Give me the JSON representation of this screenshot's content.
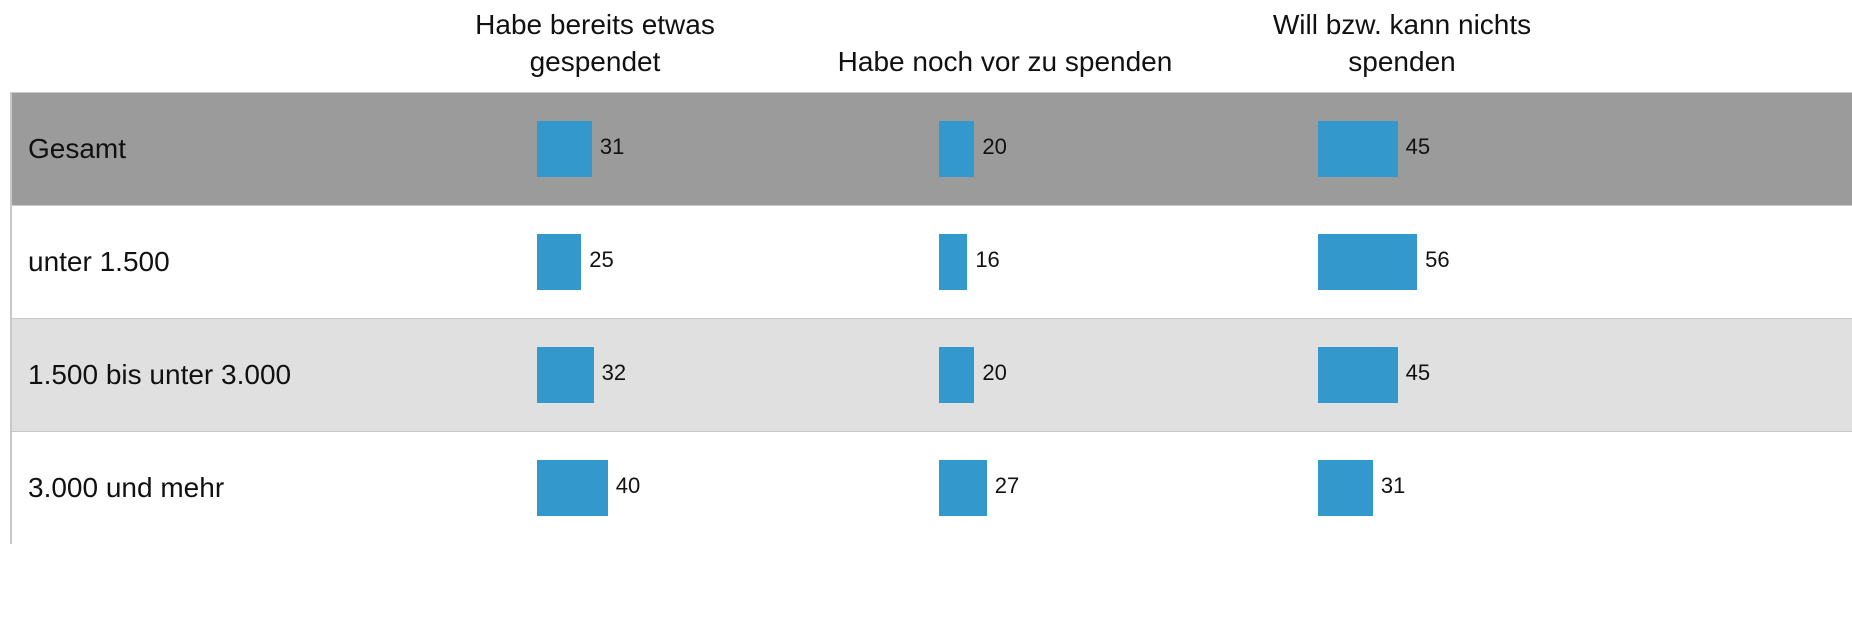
{
  "chart_data": {
    "type": "bar-table",
    "categories": [
      "Gesamt",
      "unter 1.500",
      "1.500 bis unter 3.000",
      "3.000 und mehr"
    ],
    "color": "#3399cc",
    "series": [
      {
        "name": "Habe bereits etwas gespendet",
        "values": [
          31,
          25,
          32,
          40
        ]
      },
      {
        "name": "Habe noch vor zu spenden",
        "values": [
          20,
          16,
          20,
          27
        ]
      },
      {
        "name": "Will bzw. kann nichts spenden",
        "values": [
          45,
          56,
          45,
          31
        ]
      }
    ]
  }
}
